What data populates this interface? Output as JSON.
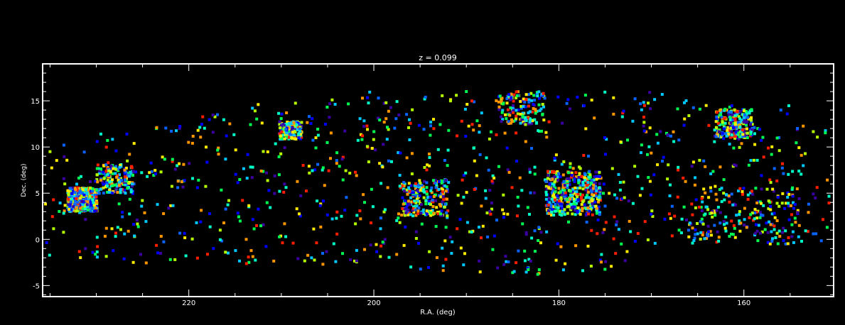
{
  "chart_data": {
    "type": "scatter",
    "title": "z = 0.099",
    "xlabel": "R.A. (deg)",
    "ylabel": "Dec. (deg)",
    "xlim": [
      235.8,
      150.3
    ],
    "ylim": [
      -6.2,
      19.0
    ],
    "x_ticks": [
      220,
      200,
      180,
      160
    ],
    "x_tick_labels": [
      "220",
      "200",
      "180",
      "160"
    ],
    "y_ticks": [
      -5,
      0,
      5,
      10,
      15
    ],
    "y_tick_labels": [
      "-5",
      "0",
      "5",
      "10",
      "15"
    ],
    "grid": false,
    "background": "#000000",
    "axis_color": "#ffffff",
    "marker": "square",
    "palette": [
      "#3a00a0",
      "#0000ff",
      "#0a64ff",
      "#00c8ff",
      "#00ffc8",
      "#00ff50",
      "#b4ff00",
      "#ffeb00",
      "#ff9600",
      "#ff1e00"
    ],
    "point_count": 3000,
    "points": [
      [
        231.5,
        4.9,
        8
      ],
      [
        232.2,
        3.8,
        9
      ],
      [
        231.0,
        5.4,
        4
      ],
      [
        230.6,
        4.2,
        7
      ],
      [
        232.8,
        5.1,
        5
      ],
      [
        231.8,
        2.9,
        3
      ],
      [
        233.4,
        6.0,
        6
      ],
      [
        230.2,
        3.1,
        8
      ],
      [
        228.9,
        6.2,
        2
      ],
      [
        229.5,
        7.5,
        5
      ],
      [
        227.5,
        7.0,
        3
      ],
      [
        226.5,
        5.5,
        1
      ],
      [
        224.5,
        6.8,
        4
      ],
      [
        223.0,
        7.3,
        6
      ],
      [
        221.2,
        5.6,
        2
      ],
      [
        219.6,
        10.4,
        8
      ],
      [
        219.0,
        11.8,
        7
      ],
      [
        209.0,
        11.7,
        9
      ],
      [
        208.5,
        12.0,
        9
      ],
      [
        207.8,
        11.6,
        7
      ],
      [
        203.5,
        2.5,
        4
      ],
      [
        201.0,
        4.0,
        5
      ],
      [
        198.5,
        5.6,
        8
      ],
      [
        196.0,
        4.5,
        3
      ],
      [
        189.0,
        5.5,
        2
      ],
      [
        186.0,
        4.8,
        6
      ],
      [
        184.0,
        5.3,
        4
      ],
      [
        179.5,
        6.1,
        5
      ],
      [
        176.0,
        5.0,
        9
      ],
      [
        175.0,
        3.6,
        2
      ],
      [
        173.0,
        6.2,
        6
      ],
      [
        171.0,
        5.5,
        4
      ],
      [
        167.0,
        1.0,
        5
      ],
      [
        165.0,
        0.6,
        3
      ],
      [
        162.0,
        1.2,
        7
      ],
      [
        160.5,
        2.0,
        4
      ],
      [
        158.0,
        0.8,
        6
      ],
      [
        154.0,
        1.5,
        8
      ],
      [
        152.5,
        0.6,
        2
      ],
      [
        151.0,
        1.3,
        5
      ],
      [
        161.0,
        12.5,
        6
      ],
      [
        160.0,
        13.2,
        3
      ],
      [
        158.5,
        12.0,
        5
      ],
      [
        156.0,
        14.0,
        2
      ],
      [
        185.0,
        15.6,
        3
      ],
      [
        183.0,
        15.8,
        6
      ],
      [
        178.0,
        15.4,
        1
      ],
      [
        190.0,
        16.0,
        5
      ],
      [
        194.5,
        15.2,
        4
      ],
      [
        199.5,
        15.3,
        2
      ],
      [
        204.5,
        15.1,
        6
      ],
      [
        212.5,
        14.6,
        7
      ],
      [
        223.5,
        12.0,
        5
      ],
      [
        229.5,
        11.4,
        4
      ],
      [
        233.5,
        10.2,
        2
      ],
      [
        235.0,
        9.5,
        6
      ],
      [
        226.0,
        -2.5,
        7
      ],
      [
        221.5,
        -2.2,
        6
      ],
      [
        213.5,
        -2.5,
        5
      ],
      [
        205.5,
        -2.7,
        8
      ],
      [
        196.0,
        -3.0,
        4
      ],
      [
        185.0,
        -3.6,
        5
      ],
      [
        179.5,
        -3.3,
        3
      ],
      [
        176.5,
        -2.9,
        6
      ]
    ]
  }
}
